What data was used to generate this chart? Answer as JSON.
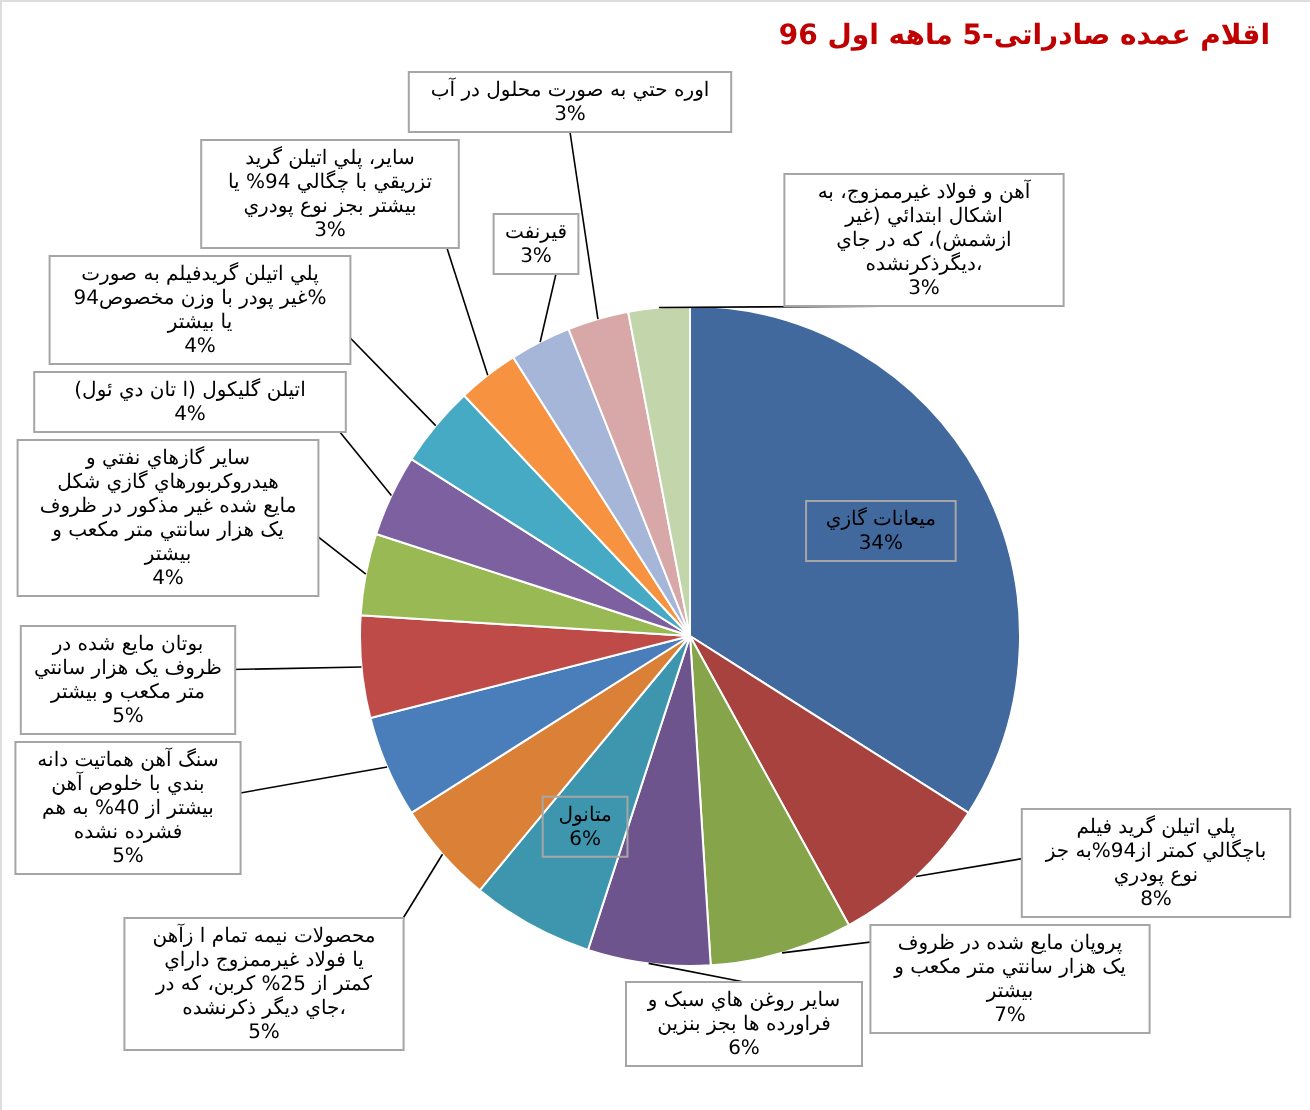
{
  "chart_data": {
    "type": "pie",
    "title": "اقلام عمده صادراتی-5 ماهه اول 96",
    "categories": [
      "میعانات گازي",
      "پلي اتيلن گريد فيلم باچگالي كمتر از94%به جز نوع پودري",
      "پروپان مايع شده در ظروف يک هزار سانتي متر مکعب و بيشتر",
      "ساير روغن هاي سبک و فراورده ها بجز بنزين",
      "متانول",
      "محصولات نيمه تمام ا زآهن يا فولاد غيرممزوج داراي كمتر از 25% كربن، كه در جاي ديگر ذكرنشده،",
      "سنگ آهن هماتيت دانه بندي با خلوص آهن بيشتر از 40% به هم فشرده نشده",
      "بوتان مايع شده در ظروف يک هزار سانتي متر مکعب و بيشتر",
      "ساير گازهاي نفتي و هيدروكربورهاي گازي شكل مايع شده غير مذكور در ظروف يک هزار سانتي متر مکعب و بيشتر",
      "اتيلن گليكول (ا تان دي ئول)",
      "پلي اتيلن گريدفيلم به صورت غير پودر با وزن مخصوص94% يا بيشتر",
      "ساير، پلي اتيلن گريد تزريقي با چگالي 94% يا بيشتر بجز نوع پودري",
      "قيرنفت",
      "اوره حتي به صورت محلول در آب",
      "آهن و فولاد غيرممزوج، به اشكال ابتدائي (غير ازشمش)، كه در جاي ديگرذكرنشده،"
    ],
    "values": [
      34,
      8,
      7,
      6,
      6,
      5,
      5,
      5,
      4,
      4,
      4,
      3,
      3,
      3,
      3
    ],
    "value_labels": [
      "34%",
      "8%",
      "7%",
      "6%",
      "6%",
      "5%",
      "5%",
      "5%",
      "4%",
      "4%",
      "4%",
      "3%",
      "3%",
      "3%",
      "3%"
    ],
    "colors": [
      "#41699e",
      "#a8423f",
      "#86a44a",
      "#6e548d",
      "#3d96ae",
      "#da8137",
      "#4a7ebb",
      "#be4b48",
      "#98b954",
      "#7d60a0",
      "#46aac5",
      "#f69240",
      "#a5b6d9",
      "#d8a8a8",
      "#c3d5ab"
    ]
  }
}
